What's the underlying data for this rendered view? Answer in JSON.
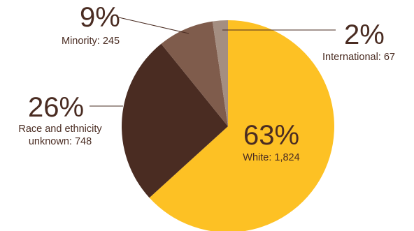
{
  "chart_data": {
    "type": "pie",
    "slices": [
      {
        "name": "White",
        "percent_label": "63%",
        "detail_label": "White: 1,824",
        "value": 1824,
        "color": "#fdc124"
      },
      {
        "name": "Race and ethnicity unknown",
        "percent_label": "26%",
        "detail_label_line1": "Race and ethnicity",
        "detail_label_line2": "unknown: 748",
        "value": 748,
        "color": "#4a2c22"
      },
      {
        "name": "Minority",
        "percent_label": "9%",
        "detail_label": "Minority: 245",
        "value": 245,
        "color": "#7f5c4c"
      },
      {
        "name": "International",
        "percent_label": "2%",
        "detail_label": "International: 67",
        "value": 67,
        "color": "#a48e81"
      }
    ],
    "start": "12 o'clock",
    "direction": "clockwise"
  }
}
